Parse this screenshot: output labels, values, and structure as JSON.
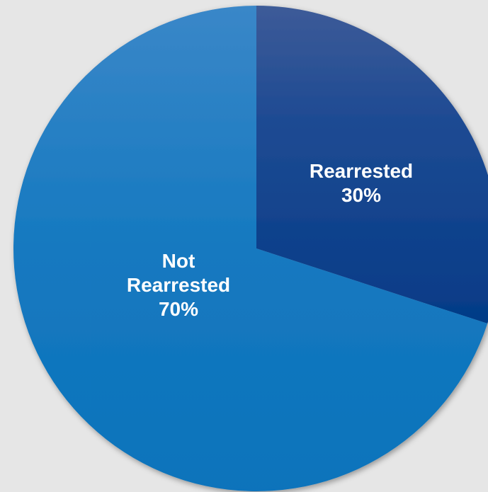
{
  "chart_data": {
    "type": "pie",
    "title": "",
    "slices": [
      {
        "category": "Rearrested",
        "label_lines": [
          "Rearrested"
        ],
        "value": 30,
        "value_label": "30%",
        "color": "#0a3d86"
      },
      {
        "category": "Not Rearrested",
        "label_lines": [
          "Not",
          "Rearrested"
        ],
        "value": 70,
        "value_label": "70%",
        "color": "#1a78bf"
      }
    ],
    "start_angle": "12 o'clock",
    "direction": "clockwise",
    "legend": "none",
    "labels": "inside slices"
  }
}
